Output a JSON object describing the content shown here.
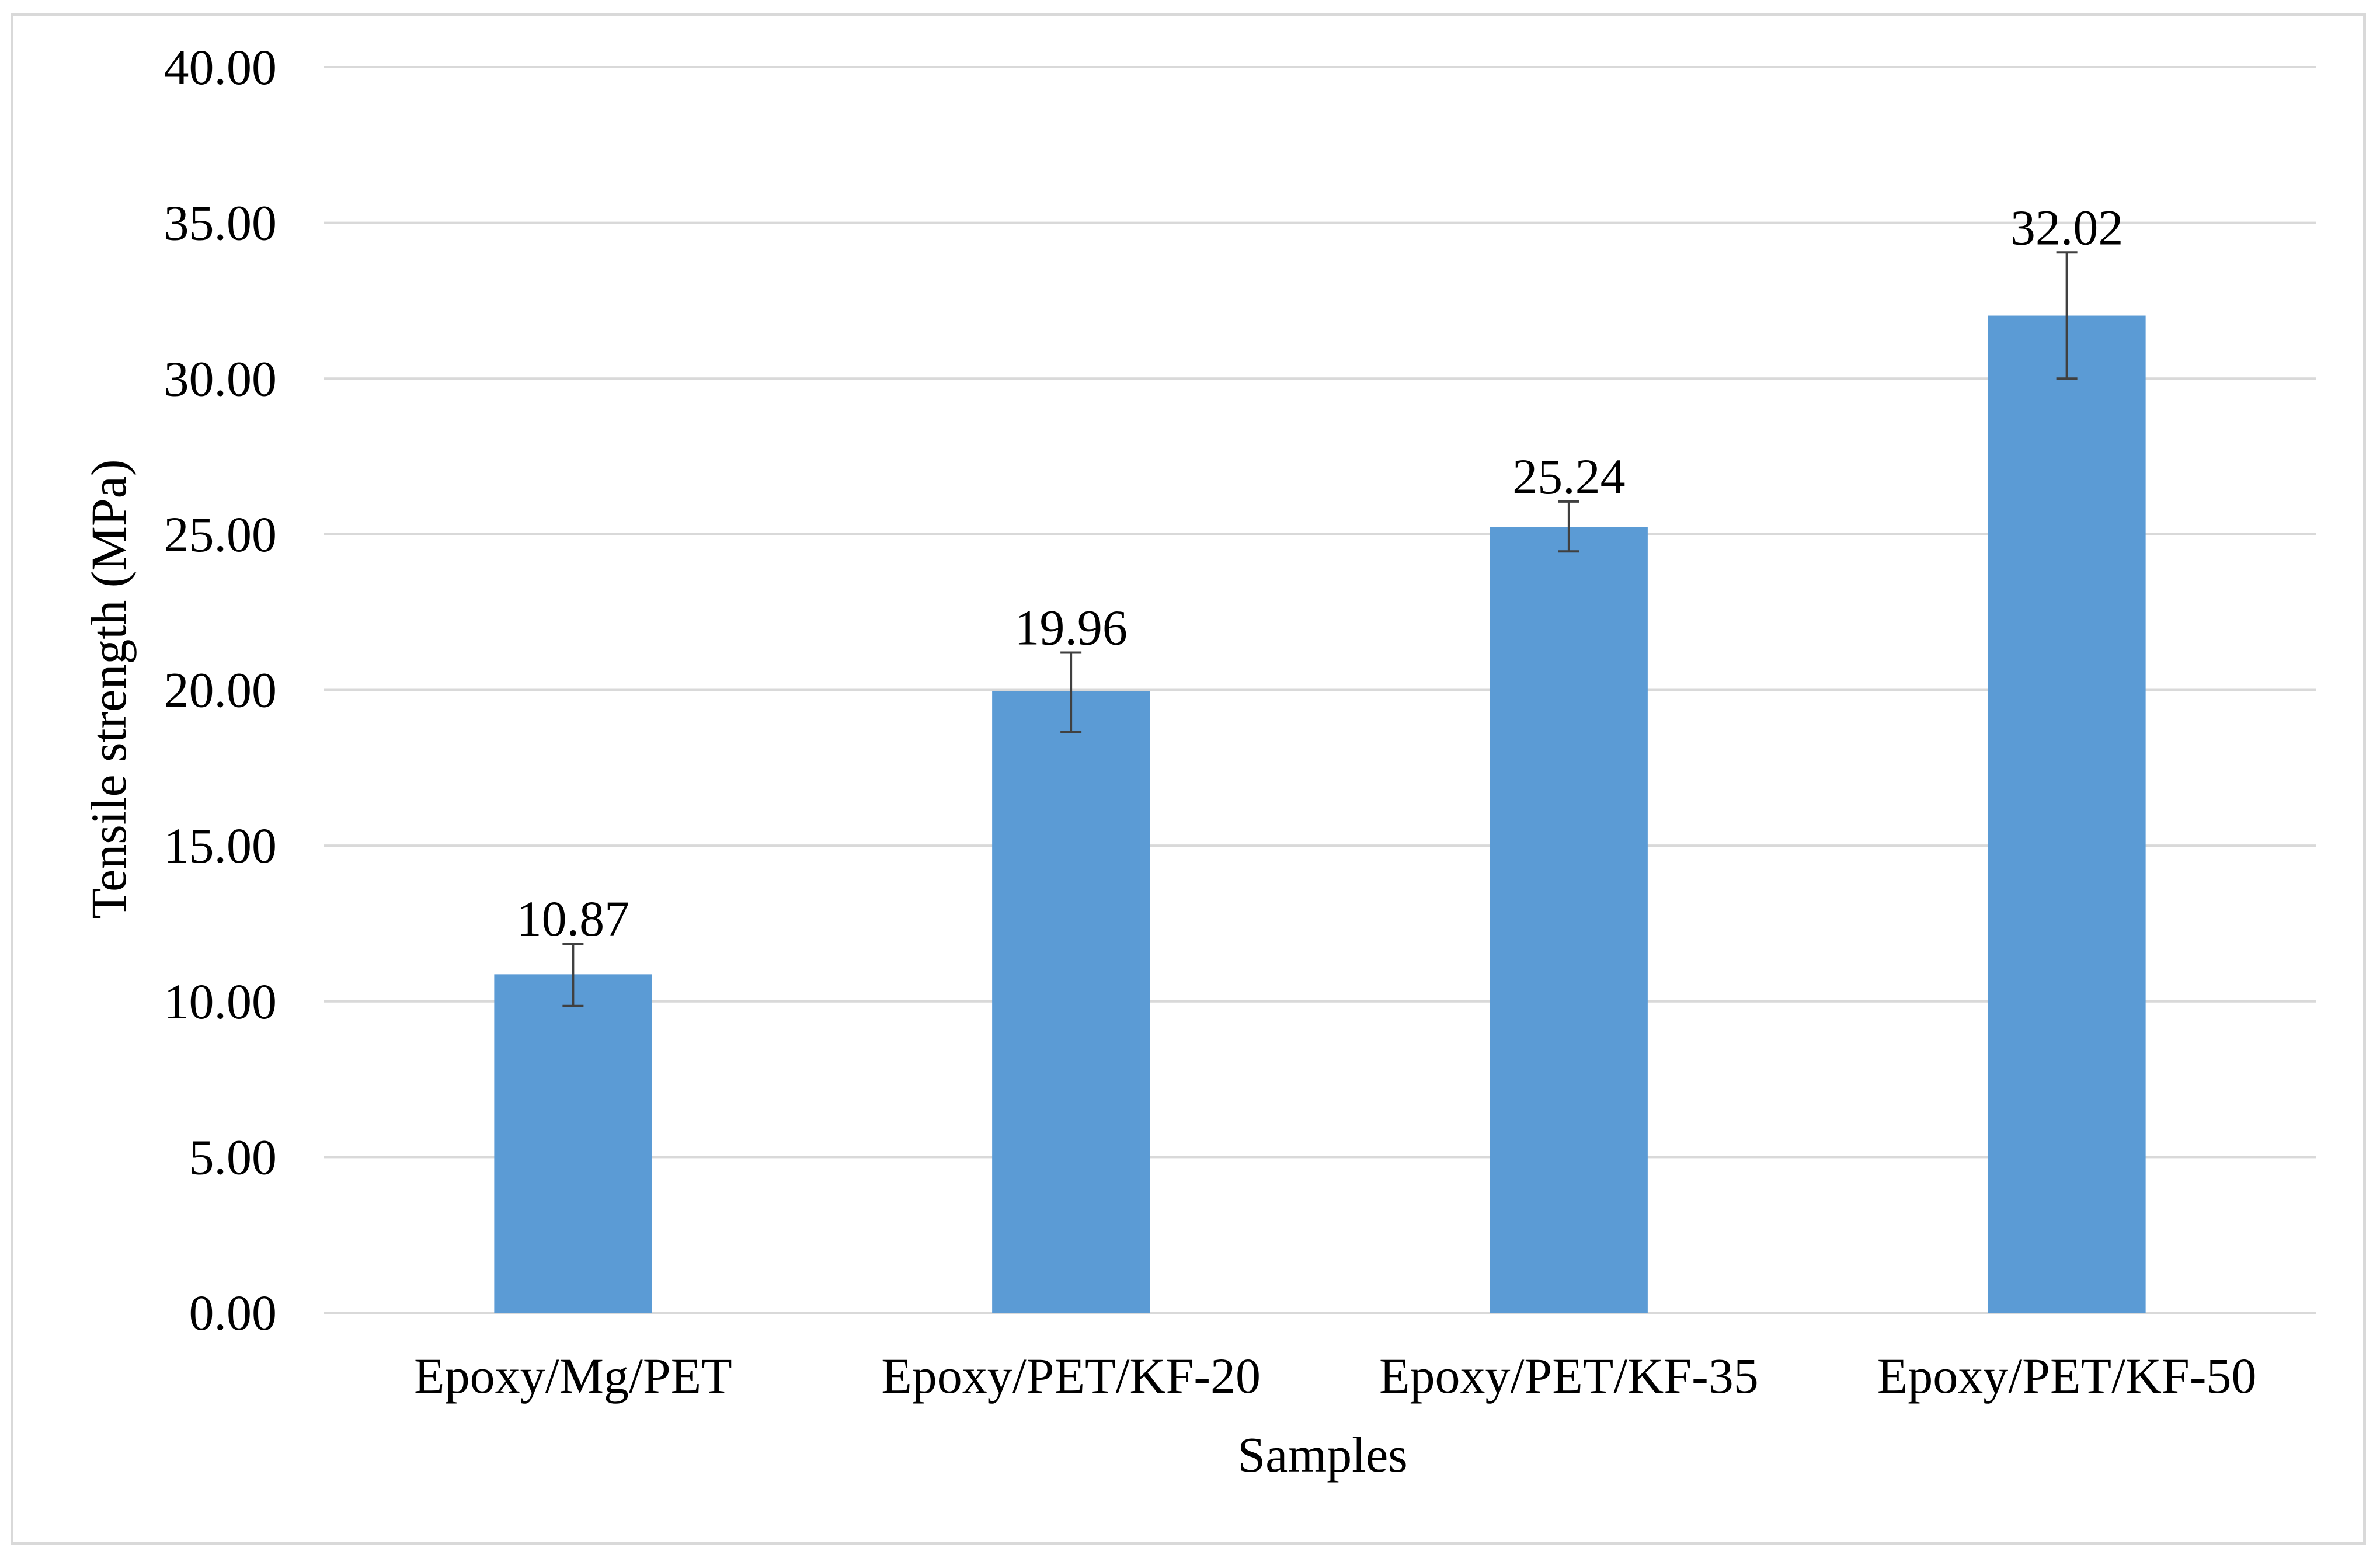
{
  "chart_data": {
    "type": "bar",
    "title": "",
    "xlabel": "Samples",
    "ylabel": "Tensile strength (MPa)",
    "categories": [
      "Epoxy/Mg/PET",
      "Epoxy/PET/KF-20",
      "Epoxy/PET/KF-35",
      "Epoxy/PET/KF-50"
    ],
    "series": [
      {
        "values": [
          10.87,
          19.96,
          25.24,
          32.02
        ],
        "error_low": [
          9.85,
          18.65,
          24.45,
          30.0
        ],
        "error_high": [
          11.85,
          21.2,
          26.05,
          34.05
        ],
        "data_labels": [
          "10.87",
          "19.96",
          "25.24",
          "32.02"
        ]
      }
    ],
    "ylim": [
      0,
      40
    ],
    "yticks": [
      0,
      5,
      10,
      15,
      20,
      25,
      30,
      35,
      40
    ],
    "ytick_labels": [
      "0.00",
      "5.00",
      "10.00",
      "15.00",
      "20.00",
      "25.00",
      "30.00",
      "35.00",
      "40.00"
    ],
    "grid": true,
    "legend": "none",
    "bar_color": "#5b9bd5",
    "grid_color": "#d9d9d9",
    "error_bar_color": "#404040"
  }
}
